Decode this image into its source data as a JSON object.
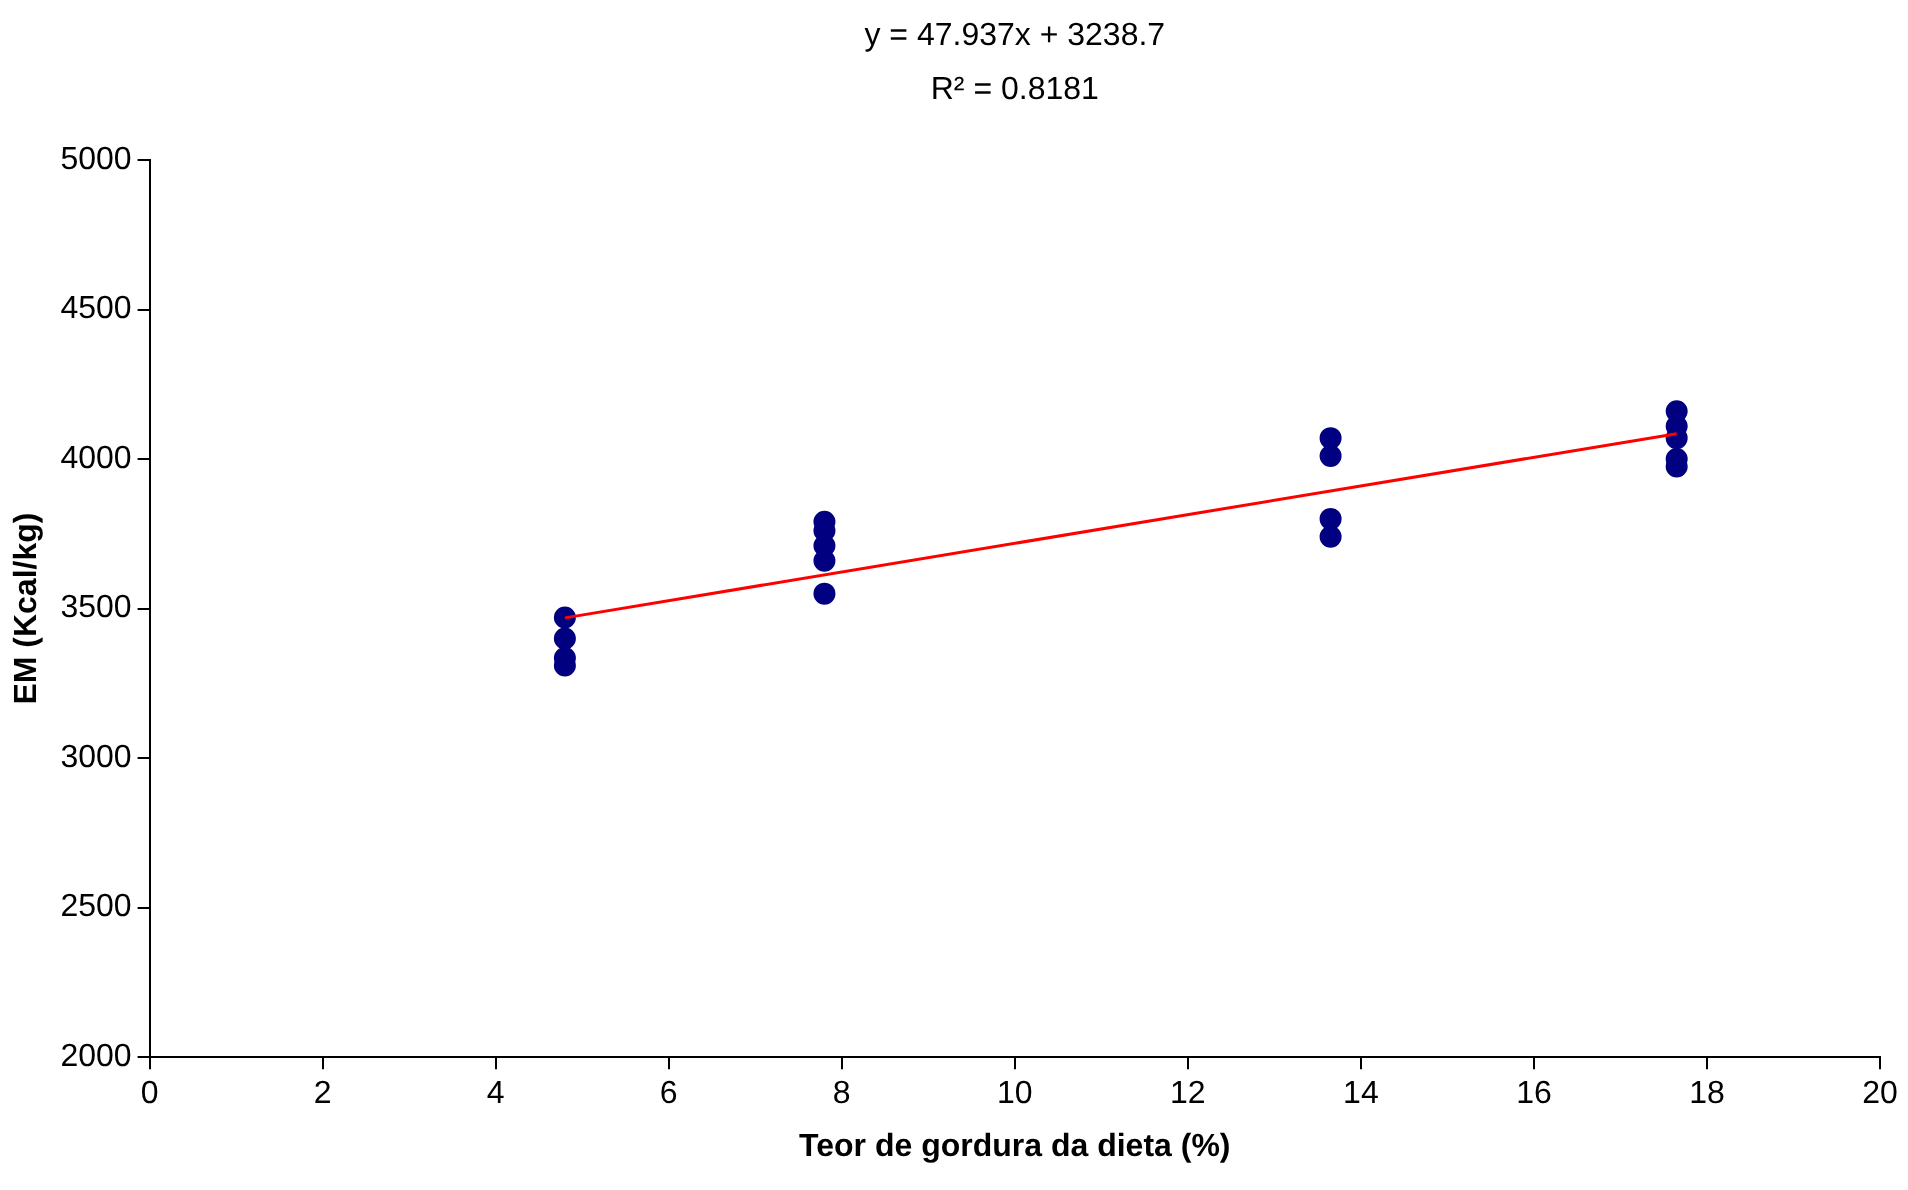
{
  "chart_data": {
    "type": "scatter",
    "xlabel": "Teor de gordura da dieta (%)",
    "ylabel": "EM (Kcal/kg)",
    "annotations": [
      "y = 47.937x + 3238.7",
      "R² = 0.8181"
    ],
    "series": [
      {
        "type": "scatter",
        "color": "#000080",
        "marker": "circle",
        "x": [
          4.8,
          4.8,
          4.8,
          4.8,
          7.8,
          7.8,
          7.8,
          7.8,
          7.8,
          13.65,
          13.65,
          13.65,
          13.65,
          17.65,
          17.65,
          17.65,
          17.65,
          17.65
        ],
        "values": [
          3470,
          3400,
          3335,
          3310,
          3790,
          3760,
          3710,
          3660,
          3550,
          4070,
          4010,
          3800,
          3740,
          4160,
          4110,
          4070,
          4000,
          3975
        ]
      },
      {
        "type": "line",
        "color": "#ff0000",
        "marker": "none",
        "x": [
          4.8,
          17.65
        ],
        "values": [
          3469,
          4085
        ]
      }
    ],
    "xlim": [
      0,
      20
    ],
    "xticks": [
      0,
      2,
      4,
      6,
      8,
      10,
      12,
      14,
      16,
      18,
      20
    ],
    "ylim": [
      2000,
      5000
    ],
    "yticks": [
      2000,
      2500,
      3000,
      3500,
      4000,
      4500,
      5000
    ],
    "grid": false,
    "legend": false
  }
}
